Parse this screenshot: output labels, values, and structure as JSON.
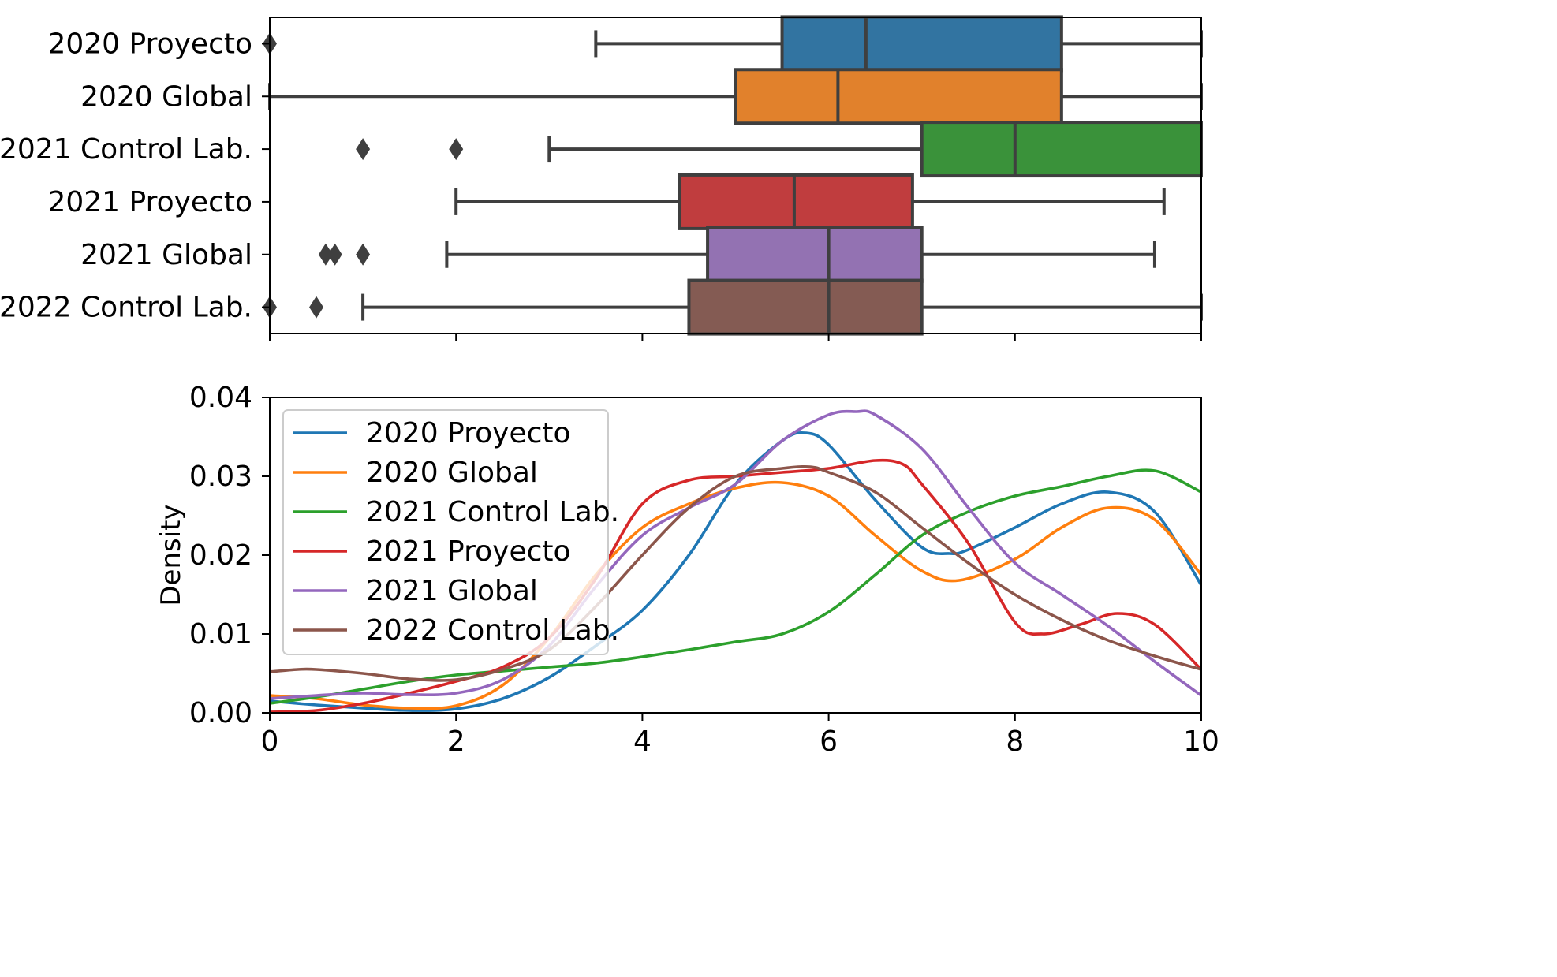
{
  "chart_data": [
    {
      "type": "box",
      "orientation": "horizontal",
      "xlim": [
        0,
        10
      ],
      "grid": false,
      "categories": [
        "2020 Proyecto",
        "2020 Global",
        "2021 Control Lab.",
        "2021 Proyecto",
        "2021 Global",
        "2022 Control Lab."
      ],
      "boxes": [
        {
          "name": "2020 Proyecto",
          "color": "#3274a1",
          "whisker_low": 3.5,
          "q1": 5.5,
          "median": 6.4,
          "q3": 8.5,
          "whisker_high": 10.0,
          "outliers": [
            0.0
          ]
        },
        {
          "name": "2020 Global",
          "color": "#e1812c",
          "whisker_low": 0.0,
          "q1": 5.0,
          "median": 6.1,
          "q3": 8.5,
          "whisker_high": 10.0,
          "outliers": []
        },
        {
          "name": "2021 Control Lab.",
          "color": "#3a923a",
          "whisker_low": 3.0,
          "q1": 7.0,
          "median": 8.0,
          "q3": 10.0,
          "whisker_high": 10.0,
          "outliers": [
            1.0,
            2.0
          ]
        },
        {
          "name": "2021 Proyecto",
          "color": "#c03d3e",
          "whisker_low": 2.0,
          "q1": 4.4,
          "median": 5.63,
          "q3": 6.9,
          "whisker_high": 9.6,
          "outliers": []
        },
        {
          "name": "2021 Global",
          "color": "#9372b2",
          "whisker_low": 1.9,
          "q1": 4.7,
          "median": 6.0,
          "q3": 7.0,
          "whisker_high": 9.5,
          "outliers": [
            0.6,
            0.7,
            1.0
          ]
        },
        {
          "name": "2022 Control Lab.",
          "color": "#845b53",
          "whisker_low": 1.0,
          "q1": 4.5,
          "median": 6.0,
          "q3": 7.0,
          "whisker_high": 10.0,
          "outliers": [
            0.0,
            0.5
          ]
        }
      ]
    },
    {
      "type": "line",
      "xlim": [
        0,
        10
      ],
      "ylim": [
        0,
        0.04
      ],
      "ylabel": "Density",
      "xticks": [
        "0",
        "2",
        "4",
        "6",
        "8",
        "10"
      ],
      "yticks": [
        "0.00",
        "0.01",
        "0.02",
        "0.03",
        "0.04"
      ],
      "legend": "top-left",
      "grid": false,
      "series": [
        {
          "name": "2020 Proyecto",
          "color": "#1f77b4",
          "x": [
            0,
            0.5,
            1,
            1.5,
            2,
            2.5,
            3,
            3.5,
            4,
            4.5,
            5,
            5.5,
            5.75,
            6,
            6.5,
            7,
            7.3,
            7.5,
            8,
            8.5,
            9,
            9.5,
            10
          ],
          "y": [
            0.0015,
            0.001,
            0.0006,
            0.0003,
            0.0005,
            0.0018,
            0.0045,
            0.0085,
            0.013,
            0.02,
            0.029,
            0.0345,
            0.0355,
            0.034,
            0.027,
            0.021,
            0.0202,
            0.0207,
            0.0235,
            0.0265,
            0.028,
            0.0255,
            0.0162
          ]
        },
        {
          "name": "2020 Global",
          "color": "#ff7f0e",
          "x": [
            0,
            0.5,
            1,
            1.5,
            2,
            2.5,
            3,
            3.5,
            4,
            4.5,
            5,
            5.5,
            6,
            6.5,
            7,
            7.4,
            8,
            8.5,
            9,
            9.5,
            10
          ],
          "y": [
            0.0022,
            0.0018,
            0.001,
            0.0006,
            0.0009,
            0.0035,
            0.0095,
            0.0175,
            0.0235,
            0.0265,
            0.0285,
            0.0292,
            0.0275,
            0.0225,
            0.018,
            0.0168,
            0.0195,
            0.0235,
            0.026,
            0.0245,
            0.0175
          ]
        },
        {
          "name": "2021 Control Lab.",
          "color": "#2ca02c",
          "x": [
            0,
            0.5,
            1,
            1.5,
            2,
            2.5,
            3,
            3.5,
            4,
            4.5,
            5,
            5.5,
            6,
            6.5,
            7,
            7.5,
            8,
            8.5,
            9,
            9.5,
            10
          ],
          "y": [
            0.0012,
            0.002,
            0.003,
            0.004,
            0.0048,
            0.0053,
            0.0058,
            0.0063,
            0.0071,
            0.008,
            0.009,
            0.01,
            0.0128,
            0.0175,
            0.0225,
            0.0255,
            0.0275,
            0.0287,
            0.03,
            0.0307,
            0.028
          ]
        },
        {
          "name": "2021 Proyecto",
          "color": "#d62728",
          "x": [
            0,
            0.5,
            1,
            1.5,
            2,
            2.5,
            3,
            3.5,
            4,
            4.5,
            5,
            5.5,
            6,
            6.5,
            6.8,
            7,
            7.5,
            8,
            8.3,
            8.7,
            9.1,
            9.5,
            10
          ],
          "y": [
            0.0001,
            0.0003,
            0.0012,
            0.0025,
            0.004,
            0.0058,
            0.0095,
            0.017,
            0.0265,
            0.0295,
            0.03,
            0.0305,
            0.031,
            0.032,
            0.0315,
            0.029,
            0.0215,
            0.0115,
            0.01,
            0.0112,
            0.0126,
            0.0112,
            0.0055
          ]
        },
        {
          "name": "2021 Global",
          "color": "#9467bd",
          "x": [
            0,
            0.5,
            1,
            1.5,
            2,
            2.5,
            3,
            3.5,
            4,
            4.5,
            5,
            5.5,
            6,
            6.3,
            6.5,
            7,
            7.5,
            8,
            8.5,
            9,
            9.5,
            10
          ],
          "y": [
            0.0018,
            0.0022,
            0.0025,
            0.0023,
            0.0025,
            0.0042,
            0.0085,
            0.016,
            0.0225,
            0.026,
            0.029,
            0.0345,
            0.0378,
            0.0382,
            0.0378,
            0.0335,
            0.026,
            0.019,
            0.015,
            0.011,
            0.0065,
            0.0022
          ]
        },
        {
          "name": "2022 Control Lab.",
          "color": "#8c564b",
          "x": [
            0,
            0.3,
            0.5,
            1,
            1.5,
            2,
            2.5,
            3,
            3.5,
            4,
            4.5,
            5,
            5.5,
            5.8,
            6,
            6.5,
            7,
            7.5,
            8,
            8.5,
            9,
            9.5,
            10
          ],
          "y": [
            0.0052,
            0.0055,
            0.0055,
            0.005,
            0.0043,
            0.0042,
            0.0055,
            0.008,
            0.0135,
            0.02,
            0.026,
            0.03,
            0.031,
            0.0312,
            0.0305,
            0.028,
            0.0235,
            0.019,
            0.015,
            0.0118,
            0.0092,
            0.0072,
            0.0055
          ]
        }
      ]
    }
  ]
}
